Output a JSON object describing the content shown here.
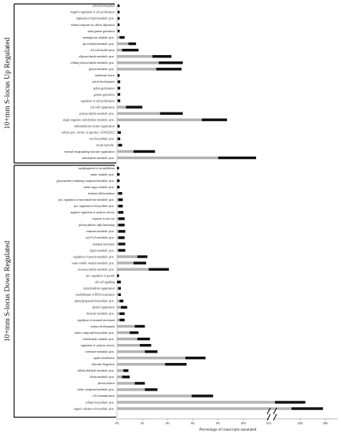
{
  "chart_data": {
    "type": "bar",
    "orientation": "horizontal",
    "stacked": true,
    "xlabel": "Percentage of transcripts annotated",
    "x_ticks": [
      "0%",
      "2%",
      "4%",
      "6%",
      "8%",
      "10%",
      "12%",
      "24%",
      "26%"
    ],
    "x_axis_break": [
      12,
      22
    ],
    "xlim": [
      0,
      26
    ],
    "grid": false,
    "legend": "none",
    "colors": {
      "gray": "#b3b3b3",
      "black": "#111111"
    },
    "groups": [
      {
        "title": "10+mm S-locus Up Regulated",
        "categories": [
          "xylem development",
          "negative regulation of cell proliferation",
          "regulation of lipid metabolic proc.",
          "defense response by callose deposition",
          "male gamete generation",
          "aminoglycan catabolic proc.",
          "glycerolipid metabolic proc.",
          "cell wall modification",
          "oligosaccharide metabolic proc.",
          "cellular polysaccharide metabolic proc.",
          "glucan metabolic proc.",
          "membrane fusion",
          "cuticle development",
          "pollen germination",
          "gamete generation",
          "regulation of cell proliferation",
          "cell wall organization",
          "polysaccharide metabolic proc.",
          "single-organism carbohydrate metabolic proc.",
          "endomembrane system organization",
          "cellular proc. invlvd. in reproduc. GO:0022412",
          "wax biosynthetic proc.",
          "sexual reproduc.",
          "external encapsulating structure organization",
          "carbohydrate metabolic proc."
        ],
        "series": [
          {
            "color": "gray",
            "values": [
              0.05,
              0.05,
              0.05,
              0.05,
              0.05,
              0.2,
              0.9,
              0.4,
              2.8,
              3.3,
              3.1,
              0.05,
              0.05,
              0.05,
              0.05,
              0.05,
              0.7,
              3.4,
              6.7,
              0.05,
              0.05,
              0.05,
              0.1,
              1.3,
              8.0
            ]
          },
          {
            "color": "black",
            "values": [
              0.15,
              0.15,
              0.15,
              0.15,
              0.15,
              0.4,
              0.6,
              1.3,
              1.5,
              1.9,
              2.0,
              0.15,
              0.2,
              0.2,
              0.2,
              0.2,
              1.3,
              1.8,
              2.0,
              0.15,
              0.25,
              0.2,
              0.3,
              1.7,
              3.0
            ]
          }
        ]
      },
      {
        "title": "10+mm S-locus Down Regulated",
        "categories": [
          "morphogenesis of an epithelium",
          "amine catabolic proc.",
          "glucosamine-containing compound metabolic proc.",
          "amino sugar catabolic proc.",
          "trichome differentiation",
          "pos. regulation of macromolecule metabolic proc.",
          "pos. regulation of biosynthetic proc.",
          "negative regulation of catalytic activity",
          "response to zinc ion",
          "photosynthesis, light harvesting",
          "coumarin metabolic proc.",
          "acyl-CoA metabolic proc.",
          "stomatal movement",
          "lignin metabolic proc.",
          "regulation of protein metabolic proc.",
          "water-soluble vitamin metabolic proc.",
          "monosaccharide metabolic proc.",
          "pos. regulation of growth",
          "cell-cell signaling",
          "mitochondrion organization",
          "establishment of RNA localization",
          "phenylpropanoid biosynthetic proc.",
          "plastid organization",
          "thioester metabolic proc.",
          "regulation of stomatal movement",
          "embryo development",
          "sulfur compound biosynthetic proc.",
          "carbohydrate catabolic proc.",
          "regulation of catalytic activity",
          "coenzyme metabolic proc.",
          "signal transduction",
          "ribosome biogenesis",
          "cellular aldehyde metabolic proc.",
          "olefin metabolic proc.",
          "photosynthesis",
          "sulfur compound metabolic proc.",
          "cell communication",
          "cellular biosynthetic proc.",
          "organic substance biosynthetic proc."
        ],
        "series": [
          {
            "color": "gray",
            "values": [
              0.0,
              0.0,
              0.0,
              0.0,
              0.1,
              0.1,
              0.1,
              0.1,
              0.1,
              0.1,
              0.1,
              0.1,
              0.1,
              0.1,
              1.6,
              1.3,
              2.5,
              0.0,
              0.0,
              0.1,
              0.1,
              0.2,
              0.3,
              0.2,
              0.2,
              1.4,
              1.0,
              1.6,
              1.8,
              2.2,
              5.4,
              3.8,
              0.5,
              0.4,
              1.4,
              2.2,
              5.9,
              22.0,
              23.3
            ]
          },
          {
            "color": "black",
            "values": [
              0.15,
              0.2,
              0.2,
              0.2,
              0.3,
              0.35,
              0.35,
              0.4,
              0.5,
              0.5,
              0.55,
              0.5,
              0.55,
              0.55,
              0.8,
              1.0,
              1.6,
              0.15,
              0.3,
              0.2,
              0.2,
              0.3,
              0.5,
              0.4,
              0.4,
              0.8,
              0.7,
              1.0,
              0.9,
              1.0,
              1.6,
              1.7,
              0.4,
              0.6,
              0.8,
              1.0,
              1.7,
              2.4,
              2.5
            ]
          }
        ]
      }
    ]
  }
}
